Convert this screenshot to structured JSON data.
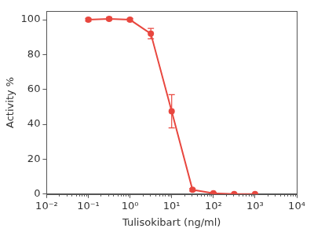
{
  "chart_data": {
    "type": "line",
    "x_label": "Tulisokibart (ng/ml)",
    "y_label": "Activity %",
    "x": [
      0.1,
      0.316,
      1,
      3.16,
      10,
      31.6,
      100,
      316,
      1000
    ],
    "values": [
      100,
      100.5,
      100,
      92,
      47.5,
      2.5,
      0.5,
      0,
      0
    ],
    "errors": [
      0.8,
      0.8,
      0.8,
      3,
      9.5,
      0.8,
      0.5,
      0.3,
      0.3
    ],
    "color": "#e8473f",
    "marker": "circle",
    "log": "x",
    "grid": false,
    "xlim": [
      0.01,
      10000
    ],
    "xticks": [
      {
        "value": 0.01,
        "label": "10⁻²"
      },
      {
        "value": 0.1,
        "label": "10⁻¹"
      },
      {
        "value": 1,
        "label": "10⁰"
      },
      {
        "value": 10,
        "label": "10¹"
      },
      {
        "value": 100,
        "label": "10²"
      },
      {
        "value": 1000,
        "label": "10³"
      },
      {
        "value": 10000,
        "label": "10⁴"
      }
    ],
    "ylim": [
      0,
      105
    ],
    "yticks": [
      0,
      20,
      40,
      60,
      80,
      100
    ]
  }
}
